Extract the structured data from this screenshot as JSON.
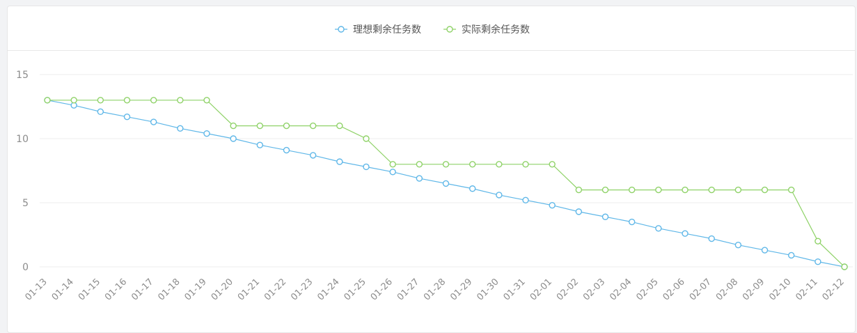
{
  "chart_data": {
    "type": "line",
    "x": [
      "01-13",
      "01-14",
      "01-15",
      "01-16",
      "01-17",
      "01-18",
      "01-19",
      "01-20",
      "01-21",
      "01-22",
      "01-23",
      "01-24",
      "01-25",
      "01-26",
      "01-27",
      "01-28",
      "01-29",
      "01-30",
      "01-31",
      "02-01",
      "02-02",
      "02-03",
      "02-04",
      "02-05",
      "02-06",
      "02-07",
      "02-08",
      "02-09",
      "02-10",
      "02-11",
      "02-12"
    ],
    "series": [
      {
        "name": "理想剩余任务数",
        "color": "#5fb7e8",
        "values": [
          13,
          12.6,
          12.1,
          11.7,
          11.3,
          10.8,
          10.4,
          10.0,
          9.5,
          9.1,
          8.7,
          8.2,
          7.8,
          7.4,
          6.9,
          6.5,
          6.1,
          5.6,
          5.2,
          4.8,
          4.3,
          3.9,
          3.5,
          3.0,
          2.6,
          2.2,
          1.7,
          1.3,
          0.9,
          0.4,
          0
        ]
      },
      {
        "name": "实际剩余任务数",
        "color": "#8fd268",
        "values": [
          13,
          13,
          13,
          13,
          13,
          13,
          13,
          11,
          11,
          11,
          11,
          11,
          10,
          8,
          8,
          8,
          8,
          8,
          8,
          8,
          6,
          6,
          6,
          6,
          6,
          6,
          6,
          6,
          6,
          2,
          0
        ]
      }
    ],
    "y_ticks": [
      0,
      5,
      10,
      15
    ],
    "ylim": [
      0,
      15
    ],
    "grid": true,
    "legend_position": "top-center"
  }
}
